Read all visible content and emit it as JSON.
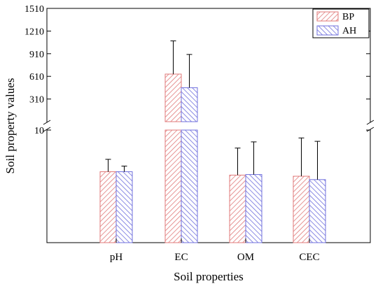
{
  "chart_data": {
    "type": "bar",
    "xlabel": "Soil properties",
    "ylabel": "Soil property values",
    "categories": [
      "pH",
      "EC",
      "OM",
      "CEC"
    ],
    "series": [
      {
        "name": "BP",
        "values": [
          6.3,
          640,
          6.0,
          5.9
        ],
        "errors": [
          1.1,
          440,
          2.4,
          3.4
        ],
        "color": "#e07a7a"
      },
      {
        "name": "AH",
        "values": [
          6.3,
          460,
          6.05,
          5.6
        ],
        "errors": [
          0.5,
          440,
          2.9,
          3.4
        ],
        "color": "#6f6fdd"
      }
    ],
    "y_axis": {
      "broken": true,
      "lower_segment_ticks": [
        "10"
      ],
      "lower_range": [
        0,
        10
      ],
      "upper_segment_ticks": [
        "310",
        "610",
        "910",
        "1210",
        "1510"
      ],
      "upper_range": [
        10,
        1510
      ]
    },
    "legend_position": "top-right",
    "grid": false,
    "pattern": "diagonal hatch"
  }
}
